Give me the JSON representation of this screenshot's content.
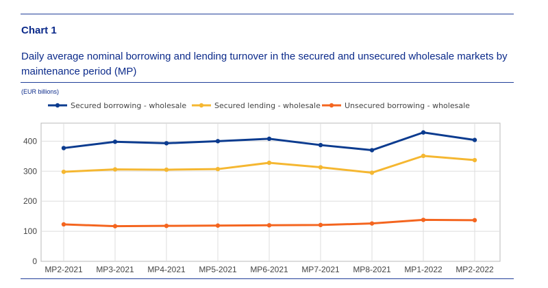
{
  "header": {
    "chart_label": "Chart 1",
    "title": "Daily average nominal borrowing and lending turnover in the secured and unsecured wholesale markets by maintenance period (MP)",
    "units": "(EUR billions)"
  },
  "chart_data": {
    "type": "line",
    "title": "Daily average nominal borrowing and lending turnover in the secured and unsecured wholesale markets by maintenance period (MP)",
    "ylabel": "(EUR billions)",
    "xlabel": "",
    "categories": [
      "MP2-2021",
      "MP3-2021",
      "MP4-2021",
      "MP5-2021",
      "MP6-2021",
      "MP7-2021",
      "MP8-2021",
      "MP1-2022",
      "MP2-2022"
    ],
    "ylim": [
      0,
      460
    ],
    "yticks": [
      0,
      100,
      200,
      300,
      400
    ],
    "grid": true,
    "legend_position": "top",
    "series": [
      {
        "name": "Secured borrowing - wholesale",
        "color": "#0b3b8f",
        "values": [
          377,
          398,
          393,
          400,
          408,
          387,
          370,
          429,
          404
        ]
      },
      {
        "name": "Secured lending - wholesale",
        "color": "#f5b731",
        "values": [
          298,
          306,
          305,
          307,
          328,
          313,
          295,
          351,
          337
        ]
      },
      {
        "name": "Unsecured borrowing - wholesale",
        "color": "#f4651f",
        "values": [
          123,
          117,
          118,
          119,
          120,
          121,
          126,
          138,
          137
        ]
      }
    ]
  }
}
